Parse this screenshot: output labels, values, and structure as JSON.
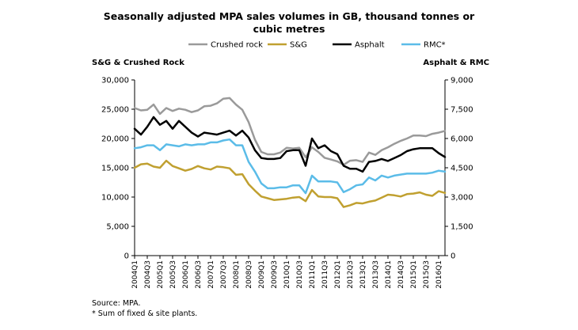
{
  "chart_data": {
    "type": "line",
    "title_line1": "Seasonally adjusted MPA sales volumes in GB, thousand tonnes or",
    "title_line2": "cubic metres",
    "left_axis_label": "S&G & Crushed Rock",
    "right_axis_label": "Asphalt & RMC",
    "left_ylim": [
      0,
      30000
    ],
    "right_ylim": [
      0,
      9000
    ],
    "left_ticks": [
      "0",
      "5,000",
      "10,000",
      "15,000",
      "20,000",
      "25,000",
      "30,000"
    ],
    "right_ticks": [
      "0",
      "1,500",
      "3,000",
      "4,500",
      "6,000",
      "7,500",
      "9,000"
    ],
    "x_tick_labels": [
      "2004Q1",
      "2004Q3",
      "2005Q1",
      "2005Q3",
      "2006Q1",
      "2006Q3",
      "2007Q1",
      "2007Q3",
      "2008Q1",
      "2008Q3",
      "2009Q1",
      "2009Q3",
      "2010Q1",
      "2010Q3",
      "2011Q1",
      "2011Q3",
      "2012Q1",
      "2012Q3",
      "2013Q1",
      "2013Q3",
      "2014Q1",
      "2014Q3",
      "2015Q1",
      "2015Q3",
      "2016Q1"
    ],
    "quarters": 50,
    "series": [
      {
        "name": "Crushed rock",
        "axis": "left",
        "color": "#9a9a9a",
        "values": [
          25200,
          24800,
          24900,
          25800,
          24200,
          25200,
          24700,
          25100,
          24900,
          24500,
          24800,
          25500,
          25600,
          26000,
          26800,
          26900,
          25800,
          24900,
          22800,
          19800,
          17700,
          17300,
          17300,
          17600,
          18400,
          18300,
          18400,
          16800,
          18500,
          17700,
          16700,
          16400,
          16100,
          15500,
          16200,
          16300,
          16000,
          17600,
          17200,
          18000,
          18500,
          19100,
          19600,
          20000,
          20500,
          20500,
          20400,
          20800,
          21000,
          21300
        ]
      },
      {
        "name": "S&G",
        "axis": "left",
        "color": "#c0a030",
        "values": [
          15000,
          15600,
          15700,
          15200,
          15000,
          16200,
          15300,
          14900,
          14500,
          14800,
          15300,
          14900,
          14700,
          15200,
          15100,
          14900,
          13800,
          13900,
          12200,
          11100,
          10100,
          9800,
          9500,
          9600,
          9700,
          9900,
          10000,
          9300,
          11200,
          10100,
          10000,
          10000,
          9800,
          8300,
          8600,
          9000,
          8900,
          9200,
          9400,
          9900,
          10400,
          10300,
          10100,
          10500,
          10600,
          10800,
          10400,
          10200,
          11000,
          10700
        ]
      },
      {
        "name": "Asphalt",
        "axis": "right",
        "color": "#000000",
        "values": [
          6500,
          6200,
          6600,
          7100,
          6700,
          6900,
          6500,
          6900,
          6600,
          6300,
          6100,
          6300,
          6250,
          6200,
          6300,
          6400,
          6150,
          6400,
          6050,
          5400,
          5000,
          4950,
          4950,
          5000,
          5350,
          5400,
          5400,
          4600,
          6000,
          5500,
          5650,
          5350,
          5200,
          4600,
          4450,
          4450,
          4300,
          4800,
          4850,
          4950,
          4850,
          5000,
          5150,
          5350,
          5450,
          5500,
          5500,
          5500,
          5250,
          5050
        ]
      },
      {
        "name": "RMC*",
        "axis": "right",
        "color": "#5bbce8",
        "values": [
          5500,
          5550,
          5650,
          5650,
          5400,
          5700,
          5650,
          5600,
          5700,
          5650,
          5700,
          5700,
          5800,
          5800,
          5900,
          5950,
          5650,
          5650,
          4800,
          4300,
          3700,
          3450,
          3450,
          3500,
          3500,
          3600,
          3600,
          3200,
          4100,
          3800,
          3800,
          3800,
          3750,
          3250,
          3400,
          3600,
          3650,
          4000,
          3850,
          4100,
          4000,
          4100,
          4150,
          4200,
          4200,
          4200,
          4200,
          4250,
          4350,
          4300
        ]
      }
    ]
  },
  "notes": {
    "source": "Source: MPA.",
    "footnote": "* Sum of fixed & site plants."
  }
}
